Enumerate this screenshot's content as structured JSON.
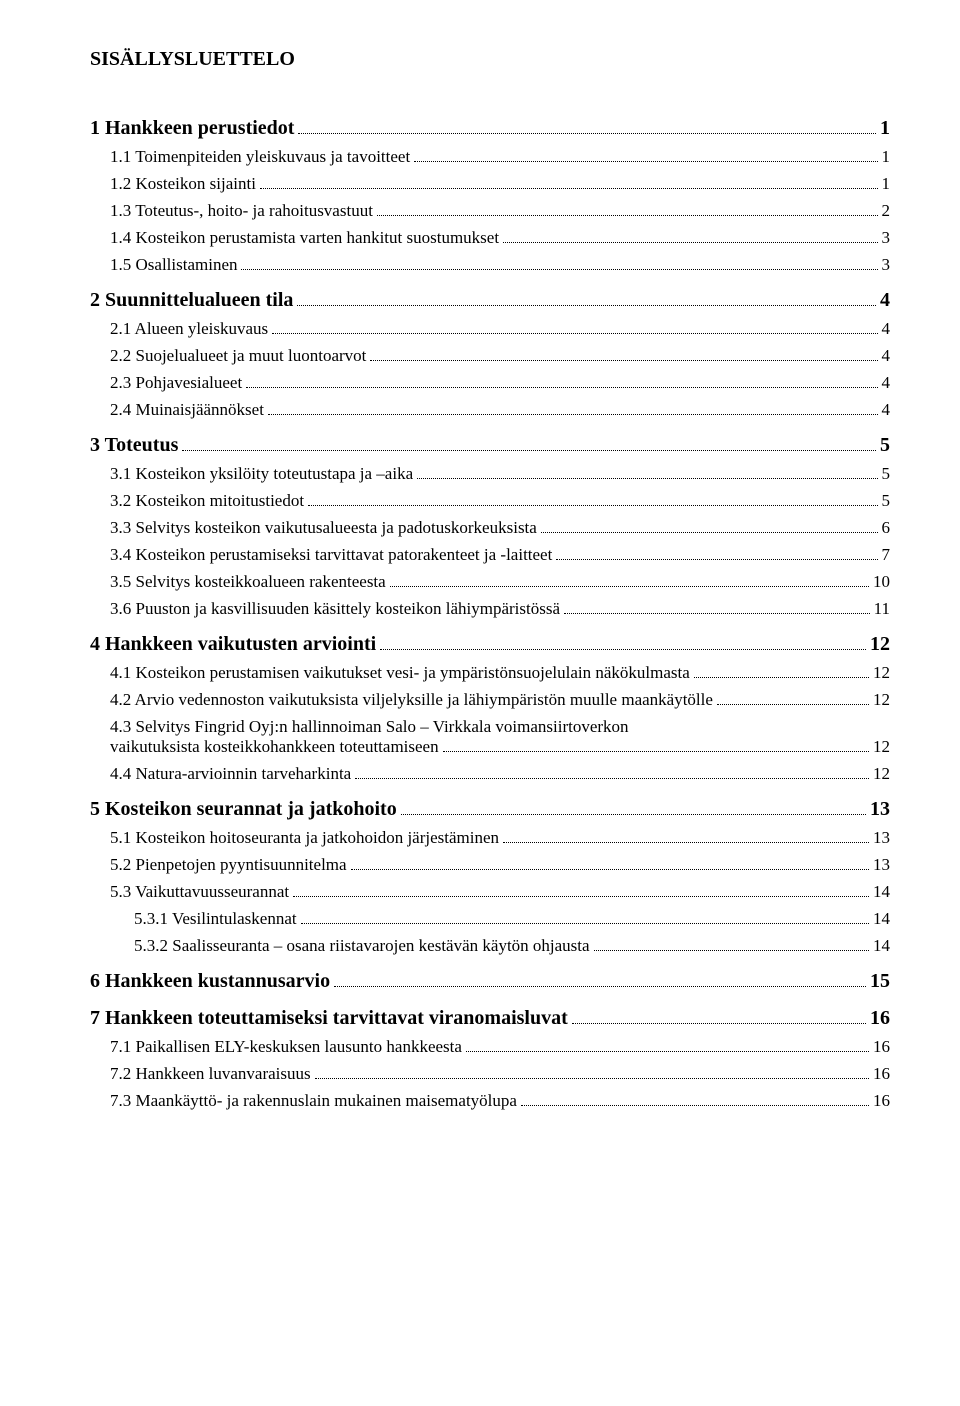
{
  "title": "SISÄLLYSLUETTELO",
  "toc": [
    {
      "level": 1,
      "label": "1 Hankkeen perustiedot",
      "page": "1"
    },
    {
      "level": 2,
      "label": "1.1 Toimenpiteiden yleiskuvaus ja tavoitteet",
      "page": "1"
    },
    {
      "level": 2,
      "label": "1.2 Kosteikon sijainti",
      "page": "1"
    },
    {
      "level": 2,
      "label": "1.3 Toteutus-, hoito- ja rahoitusvastuut",
      "page": "2"
    },
    {
      "level": 2,
      "label": "1.4 Kosteikon perustamista varten hankitut suostumukset",
      "page": "3"
    },
    {
      "level": 2,
      "label": "1.5 Osallistaminen",
      "page": "3"
    },
    {
      "level": 1,
      "label": "2 Suunnittelualueen tila",
      "page": "4"
    },
    {
      "level": 2,
      "label": "2.1 Alueen yleiskuvaus",
      "page": "4"
    },
    {
      "level": 2,
      "label": "2.2 Suojelualueet ja muut luontoarvot",
      "page": "4"
    },
    {
      "level": 2,
      "label": "2.3 Pohjavesialueet",
      "page": "4"
    },
    {
      "level": 2,
      "label": "2.4 Muinaisjäännökset",
      "page": "4"
    },
    {
      "level": 1,
      "label": "3 Toteutus",
      "page": "5"
    },
    {
      "level": 2,
      "label": "3.1 Kosteikon yksilöity toteutustapa ja –aika",
      "page": "5"
    },
    {
      "level": 2,
      "label": "3.2 Kosteikon mitoitustiedot",
      "page": "5"
    },
    {
      "level": 2,
      "label": "3.3 Selvitys kosteikon vaikutusalueesta ja padotuskorkeuksista",
      "page": "6"
    },
    {
      "level": 2,
      "label": "3.4 Kosteikon perustamiseksi tarvittavat patorakenteet ja -laitteet",
      "page": "7"
    },
    {
      "level": 2,
      "label": "3.5 Selvitys kosteikkoalueen rakenteesta",
      "page": "10"
    },
    {
      "level": 2,
      "label": "3.6 Puuston ja kasvillisuuden käsittely kosteikon lähiympäristössä",
      "page": "11"
    },
    {
      "level": 1,
      "label": "4 Hankkeen vaikutusten arviointi",
      "page": "12"
    },
    {
      "level": 2,
      "label": "4.1 Kosteikon perustamisen vaikutukset vesi- ja ympäristönsuojelulain näkökulmasta",
      "page": "12"
    },
    {
      "level": 2,
      "label": "4.2 Arvio vedennoston vaikutuksista viljelyksille ja lähiympäristön muulle maankäytölle",
      "page": "12"
    },
    {
      "level": 2,
      "label": "4.3 Selvitys Fingrid Oyj:n hallinnoiman Salo – Virkkala voimansiirtoverkon vaikutuksista kosteikkohankkeen toteuttamiseen",
      "page": "12"
    },
    {
      "level": 2,
      "label": "4.4 Natura-arvioinnin tarveharkinta",
      "page": "12"
    },
    {
      "level": 1,
      "label": "5 Kosteikon seurannat ja jatkohoito",
      "page": "13"
    },
    {
      "level": 2,
      "label": "5.1 Kosteikon hoitoseuranta ja jatkohoidon järjestäminen",
      "page": "13"
    },
    {
      "level": 2,
      "label": "5.2 Pienpetojen pyyntisuunnitelma",
      "page": "13"
    },
    {
      "level": 2,
      "label": "5.3 Vaikuttavuusseurannat",
      "page": "14"
    },
    {
      "level": 3,
      "label": "5.3.1 Vesilintulaskennat",
      "page": "14"
    },
    {
      "level": 3,
      "label": "5.3.2 Saalisseuranta – osana riistavarojen kestävän käytön ohjausta",
      "page": "14"
    },
    {
      "level": 1,
      "label": "6 Hankkeen kustannusarvio",
      "page": "15"
    },
    {
      "level": 1,
      "label": "7 Hankkeen toteuttamiseksi tarvittavat viranomaisluvat",
      "page": "16"
    },
    {
      "level": 2,
      "label": "7.1 Paikallisen ELY-keskuksen lausunto hankkeesta",
      "page": "16"
    },
    {
      "level": 2,
      "label": "7.2 Hankkeen luvanvaraisuus",
      "page": "16"
    },
    {
      "level": 2,
      "label": "7.3 Maankäyttö- ja rakennuslain mukainen maisematyölupa",
      "page": "16"
    }
  ]
}
